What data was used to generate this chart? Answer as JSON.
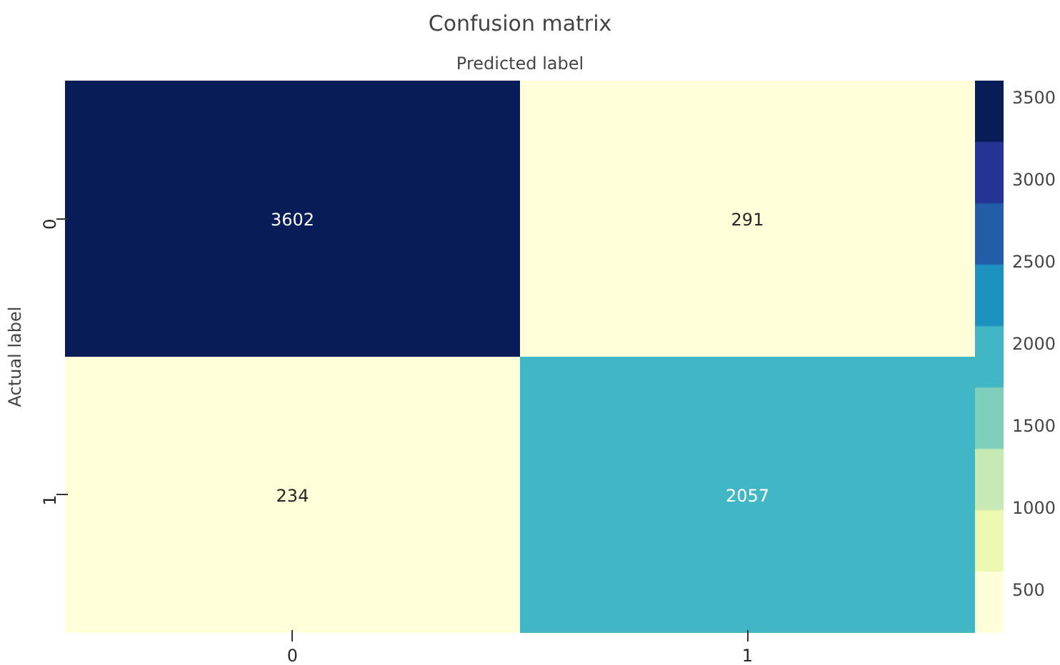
{
  "chart_data": {
    "type": "heatmap",
    "title": "Confusion matrix",
    "xlabel": "Predicted label",
    "ylabel": "Actual label",
    "categories": [
      "0",
      "1"
    ],
    "y_categories": [
      "0",
      "1"
    ],
    "cells": [
      [
        3602,
        291
      ],
      [
        234,
        2057
      ]
    ],
    "clim": [
      234,
      3602
    ],
    "cticks": [
      500,
      1000,
      1500,
      2000,
      2500,
      3000,
      3500
    ],
    "data_labels": true
  }
}
